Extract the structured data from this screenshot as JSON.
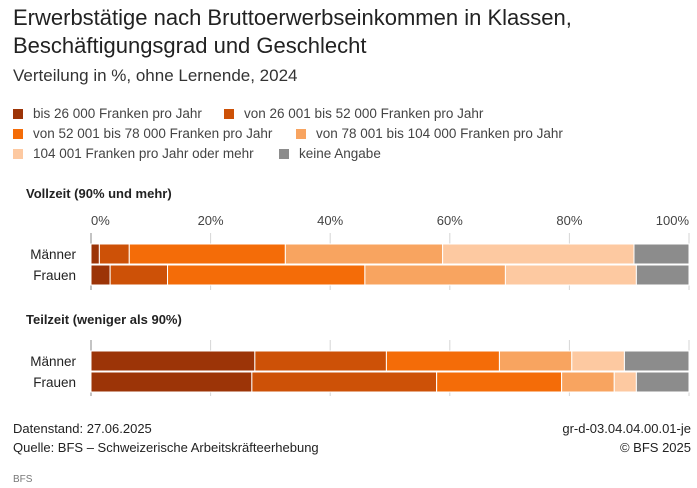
{
  "header": {
    "title": "Erwerbstätige nach Bruttoerwerbseinkommen in Klassen, Beschäftigungsgrad und Geschlecht",
    "subtitle": "Verteilung in %, ohne Lernende, 2024"
  },
  "colors": {
    "c1": "#9c3407",
    "c2": "#cd5107",
    "c3": "#f46c08",
    "c4": "#f8a460",
    "c5": "#fdc9a1",
    "c6": "#8c8c8c"
  },
  "chart_data": {
    "type": "bar",
    "orientation": "horizontal",
    "stacked": true,
    "xlim": [
      0,
      100
    ],
    "ticks": [
      "0%",
      "20%",
      "40%",
      "60%",
      "80%",
      "100%"
    ],
    "series": [
      {
        "name": "bis 26 000 Franken pro Jahr"
      },
      {
        "name": "von 26 001 bis 52 000 Franken pro Jahr"
      },
      {
        "name": "von 52 001 bis 78 000 Franken pro Jahr"
      },
      {
        "name": "von 78 001 bis 104 000 Franken pro Jahr"
      },
      {
        "name": "104 001 Franken pro Jahr oder mehr"
      },
      {
        "name": "keine Angabe"
      }
    ],
    "panels": [
      {
        "title": "Vollzeit (90% und mehr)",
        "categories": [
          "Männer",
          "Frauen"
        ],
        "values": [
          [
            1.4,
            5.0,
            26.1,
            26.3,
            32.0,
            9.2
          ],
          [
            3.2,
            9.6,
            33.0,
            23.5,
            21.9,
            8.8
          ]
        ]
      },
      {
        "title": "Teilzeit (weniger als 90%)",
        "categories": [
          "Männer",
          "Frauen"
        ],
        "values": [
          [
            27.4,
            22.0,
            18.9,
            12.1,
            8.8,
            10.8
          ],
          [
            26.9,
            30.9,
            20.9,
            8.8,
            3.7,
            8.8
          ]
        ]
      }
    ]
  },
  "footer": {
    "datenstand": "Datenstand: 27.06.2025",
    "quelle": "Quelle: BFS – Schweizerische Arbeitskräfteerhebung",
    "code": "gr-d-03.04.04.00.01-je",
    "copyright": "© BFS 2025",
    "brand": "BFS"
  }
}
